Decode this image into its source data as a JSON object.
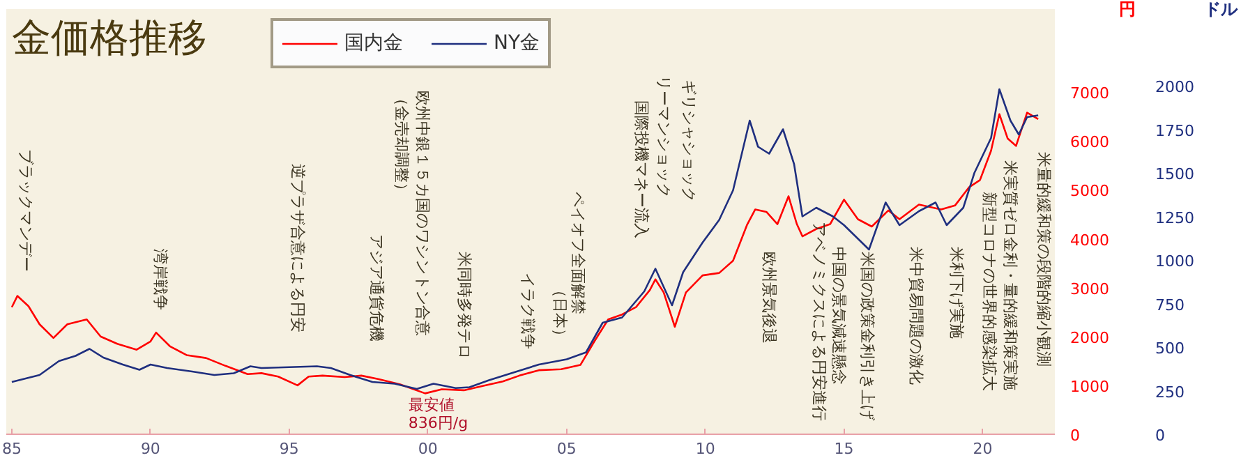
{
  "chart_data": {
    "type": "line",
    "title": "金価格推移",
    "ylabel": "円",
    "y2label": "ドル",
    "xlim": [
      1984.8,
      2022.6
    ],
    "xticks": [
      {
        "value": 1985,
        "label": "85"
      },
      {
        "value": 1990,
        "label": "90"
      },
      {
        "value": 1995,
        "label": "95"
      },
      {
        "value": 2000,
        "label": "00"
      },
      {
        "value": 2005,
        "label": "05"
      },
      {
        "value": 2010,
        "label": "10"
      },
      {
        "value": 2015,
        "label": "15"
      },
      {
        "value": 2020,
        "label": "20"
      }
    ],
    "ylim": [
      0,
      8700
    ],
    "yticks": [
      0,
      1000,
      2000,
      3000,
      4000,
      5000,
      6000,
      7000
    ],
    "y2lim": [
      0,
      2440
    ],
    "y2ticks": [
      0,
      250,
      500,
      750,
      1000,
      1250,
      1500,
      1750,
      2000
    ],
    "grid": false,
    "legend": "top left",
    "line_style": "solid",
    "series": [
      {
        "name": "国内金",
        "color": "#ff0000",
        "x": [
          1985.0,
          1985.2,
          1985.6,
          1986.0,
          1986.5,
          1987.0,
          1987.7,
          1988.2,
          1988.8,
          1989.5,
          1990.0,
          1990.2,
          1990.7,
          1991.3,
          1992.0,
          1992.7,
          1993.5,
          1994.0,
          1994.6,
          1995.3,
          1995.7,
          1996.2,
          1997.0,
          1997.6,
          1998.2,
          1999.0,
          1999.9,
          2000.5,
          2001.3,
          2002.0,
          2002.7,
          2003.3,
          2004.0,
          2004.8,
          2005.5,
          2006.0,
          2006.5,
          2007.0,
          2007.5,
          2008.0,
          2008.2,
          2008.5,
          2008.9,
          2009.3,
          2009.9,
          2010.5,
          2011.0,
          2011.5,
          2011.8,
          2012.2,
          2012.6,
          2013.0,
          2013.3,
          2013.5,
          2014.0,
          2014.5,
          2015.0,
          2015.5,
          2016.0,
          2016.6,
          2017.0,
          2017.7,
          2018.5,
          2019.0,
          2019.5,
          2019.9,
          2020.3,
          2020.6,
          2020.9,
          2021.2,
          2021.6,
          2022.0
        ],
        "values": [
          2600,
          2830,
          2620,
          2250,
          1970,
          2250,
          2350,
          2000,
          1850,
          1730,
          1900,
          2080,
          1800,
          1620,
          1560,
          1400,
          1230,
          1250,
          1180,
          1000,
          1180,
          1200,
          1170,
          1200,
          1130,
          1020,
          836,
          920,
          900,
          990,
          1080,
          1200,
          1310,
          1330,
          1420,
          1900,
          2350,
          2450,
          2600,
          2950,
          3170,
          2900,
          2200,
          2900,
          3250,
          3300,
          3550,
          4280,
          4600,
          4550,
          4300,
          4870,
          4300,
          4050,
          4200,
          4300,
          4800,
          4400,
          4250,
          4580,
          4400,
          4700,
          4600,
          4680,
          5050,
          5200,
          5800,
          6550,
          6050,
          5900,
          6580,
          6450
        ]
      },
      {
        "name": "NY金",
        "color": "#1f2f7f",
        "axis": "y2",
        "x": [
          1985.0,
          1985.5,
          1986.0,
          1986.7,
          1987.3,
          1987.8,
          1988.3,
          1989.0,
          1989.6,
          1990.0,
          1990.6,
          1991.5,
          1992.3,
          1993.0,
          1993.6,
          1994.0,
          1995.0,
          1996.0,
          1996.5,
          1997.2,
          1998.0,
          1998.8,
          1999.6,
          2000.2,
          2001.0,
          2001.5,
          2002.2,
          2003.0,
          2004.0,
          2005.0,
          2005.7,
          2006.3,
          2007.0,
          2007.8,
          2008.2,
          2008.8,
          2009.2,
          2009.9,
          2010.5,
          2011.0,
          2011.6,
          2011.9,
          2012.3,
          2012.8,
          2013.2,
          2013.5,
          2014.0,
          2014.6,
          2015.0,
          2015.9,
          2016.5,
          2017.0,
          2017.7,
          2018.3,
          2018.7,
          2019.3,
          2019.7,
          2020.3,
          2020.6,
          2021.0,
          2021.3,
          2021.6,
          2022.0
        ],
        "values": [
          300,
          320,
          340,
          420,
          450,
          490,
          440,
          400,
          370,
          400,
          380,
          360,
          340,
          350,
          390,
          380,
          385,
          390,
          380,
          340,
          300,
          290,
          260,
          290,
          265,
          270,
          310,
          350,
          400,
          430,
          470,
          640,
          670,
          820,
          950,
          740,
          930,
          1100,
          1230,
          1400,
          1800,
          1650,
          1610,
          1750,
          1550,
          1250,
          1300,
          1250,
          1200,
          1060,
          1330,
          1200,
          1280,
          1330,
          1200,
          1300,
          1500,
          1700,
          1980,
          1800,
          1720,
          1820,
          1830
        ]
      }
    ],
    "annotations": [
      "ブラックマンデー",
      "湾岸戦争",
      "逆プラザ合意による円安",
      "アジア通貨危機",
      "（金売却調整）",
      "欧州中銀１５カ国のワシントン合意",
      "米同時多発テロ",
      "イラク戦争",
      "（日本）",
      "ペイオフ全面解禁",
      "国際投機マネー流入",
      "リーマンショック",
      "ギリシャショック",
      "欧州景気後退",
      "アベノミクスによる円安進行",
      "中国の景気減速懸念",
      "米国の政策金利引き上げ",
      "米中貿易問題の激化",
      "米利下げ実施",
      "新型コロナの世界的感染拡大",
      "米実質ゼロ金利・量的緩和策実施",
      "米量的緩和策の段階的縮小観測",
      {
        "text": "最安値\n836円/g",
        "x": 1999.9,
        "y": 836
      }
    ]
  }
}
